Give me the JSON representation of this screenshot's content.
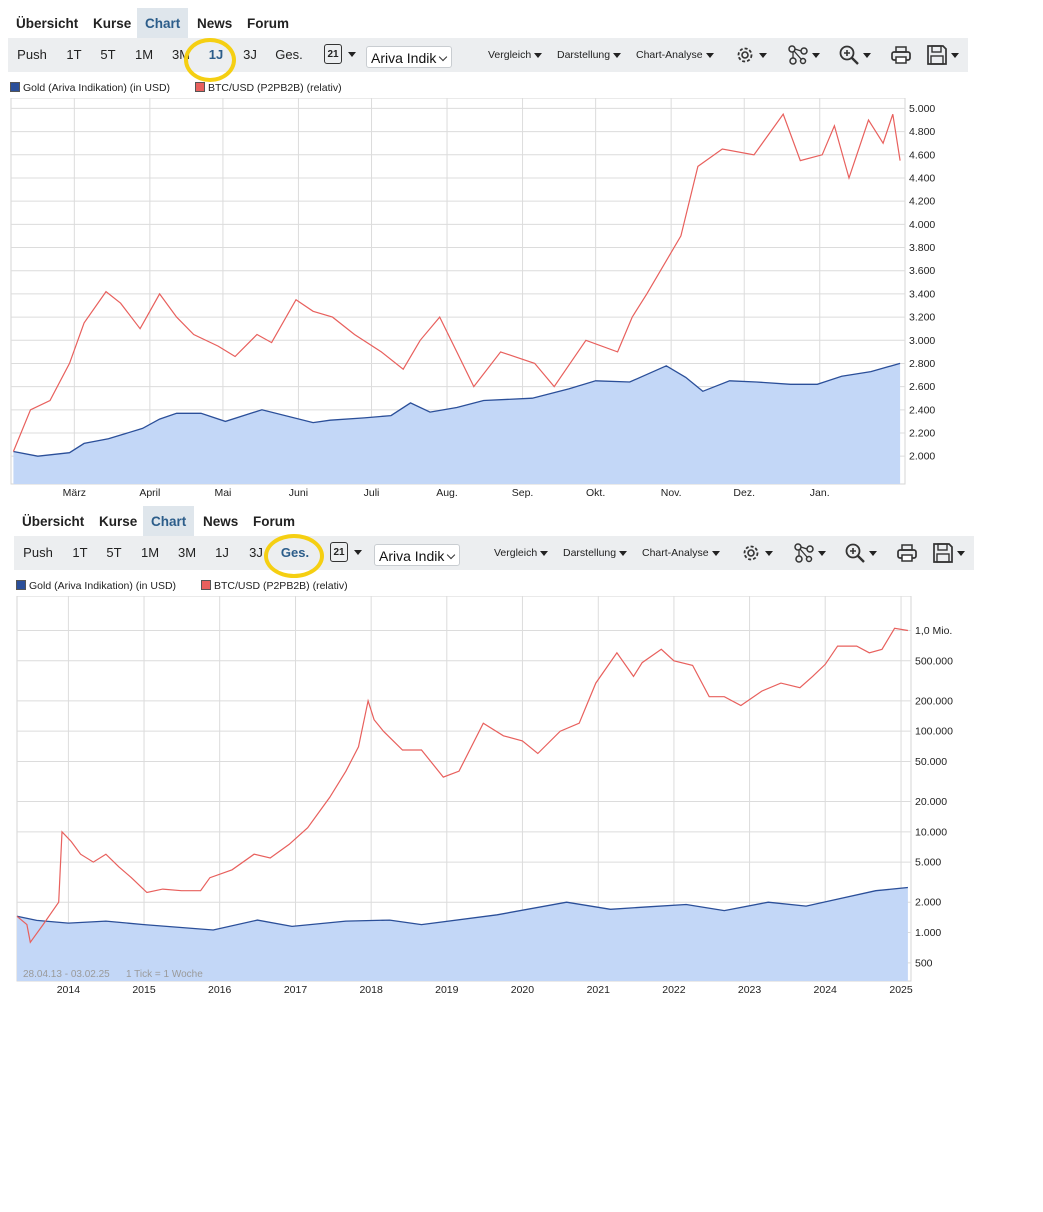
{
  "nav_tabs": [
    {
      "label": "Übersicht"
    },
    {
      "label": "Kurse"
    },
    {
      "label": "Chart",
      "active": true
    },
    {
      "label": "News"
    },
    {
      "label": "Forum"
    }
  ],
  "toolbar": {
    "ranges": [
      "Push",
      "1T",
      "5T",
      "1M",
      "3M",
      "1J",
      "3J",
      "Ges."
    ],
    "calendar_label": "21",
    "select_value": "Ariva Indik",
    "menus": [
      "Vergleich",
      "Darstellung",
      "Chart-Analyse"
    ],
    "icons": [
      "gear-icon",
      "network-icon",
      "zoom-in-icon",
      "print-icon",
      "save-icon"
    ]
  },
  "colors": {
    "gold_line": "#2b4f99",
    "gold_fill": "#c3d7f7",
    "btc_line": "#e8605d",
    "grid": "#dcdcdc",
    "highlight": "#f5cf12",
    "toolbar_bg": "#eceef0",
    "active_tab_bg": "#dfe6ec"
  },
  "legend": [
    "Gold (Ariva Indikation) (in USD)",
    "BTC/USD (P2PB2B) (relativ)"
  ],
  "chart_data": [
    {
      "type": "line",
      "selected_range": "1J",
      "y_scale": "linear",
      "xlabels": [
        "März",
        "April",
        "Mai",
        "Juni",
        "Juli",
        "Aug.",
        "Sep.",
        "Okt.",
        "Nov.",
        "Dez.",
        "Jan."
      ],
      "ylabels": [
        "2.000",
        "2.200",
        "2.400",
        "2.600",
        "2.800",
        "3.000",
        "3.200",
        "3.400",
        "3.600",
        "3.800",
        "4.000",
        "4.200",
        "4.400",
        "4.600",
        "4.800",
        "5.000"
      ],
      "ylabel_values": [
        2000,
        2200,
        2400,
        2600,
        2800,
        3000,
        3200,
        3400,
        3600,
        3800,
        4000,
        4200,
        4400,
        4600,
        4800,
        5000
      ],
      "ylim": [
        1760,
        5090
      ],
      "grid": true,
      "series": [
        {
          "name": "Gold (Ariva Indikation) (in USD)",
          "x": [
            "2024-02-05",
            "2024-02-15",
            "2024-02-28",
            "2024-03-05",
            "2024-03-15",
            "2024-03-29",
            "2024-04-05",
            "2024-04-12",
            "2024-04-22",
            "2024-05-02",
            "2024-05-17",
            "2024-06-07",
            "2024-06-14",
            "2024-06-28",
            "2024-07-09",
            "2024-07-17",
            "2024-07-25",
            "2024-08-05",
            "2024-08-16",
            "2024-09-05",
            "2024-09-20",
            "2024-10-01",
            "2024-10-15",
            "2024-10-30",
            "2024-11-07",
            "2024-11-14",
            "2024-11-25",
            "2024-12-06",
            "2024-12-20",
            "2024-12-31",
            "2025-01-10",
            "2025-01-22",
            "2025-02-03"
          ],
          "values": [
            2040,
            2000,
            2030,
            2110,
            2150,
            2240,
            2320,
            2370,
            2370,
            2300,
            2400,
            2290,
            2310,
            2330,
            2350,
            2460,
            2380,
            2420,
            2480,
            2500,
            2580,
            2650,
            2640,
            2780,
            2680,
            2560,
            2650,
            2640,
            2620,
            2620,
            2690,
            2730,
            2800
          ]
        },
        {
          "name": "BTC/USD (P2PB2B) (relativ)",
          "x": [
            "2024-02-05",
            "2024-02-12",
            "2024-02-20",
            "2024-02-28",
            "2024-03-05",
            "2024-03-14",
            "2024-03-20",
            "2024-03-28",
            "2024-04-05",
            "2024-04-12",
            "2024-04-19",
            "2024-04-29",
            "2024-05-06",
            "2024-05-15",
            "2024-05-21",
            "2024-05-31",
            "2024-06-07",
            "2024-06-15",
            "2024-06-24",
            "2024-07-05",
            "2024-07-14",
            "2024-07-21",
            "2024-07-29",
            "2024-08-05",
            "2024-08-12",
            "2024-08-23",
            "2024-09-06",
            "2024-09-14",
            "2024-09-27",
            "2024-10-10",
            "2024-10-16",
            "2024-10-22",
            "2024-11-05",
            "2024-11-12",
            "2024-11-22",
            "2024-12-05",
            "2024-12-17",
            "2024-12-24",
            "2025-01-02",
            "2025-01-07",
            "2025-01-13",
            "2025-01-21",
            "2025-01-27",
            "2025-01-31",
            "2025-02-03"
          ],
          "values": [
            2040,
            2400,
            2480,
            2800,
            3150,
            3420,
            3320,
            3100,
            3400,
            3200,
            3050,
            2950,
            2860,
            3050,
            2980,
            3350,
            3250,
            3200,
            3050,
            2900,
            2750,
            3000,
            3200,
            2900,
            2600,
            2900,
            2800,
            2600,
            3000,
            2900,
            3200,
            3400,
            3900,
            4500,
            4650,
            4600,
            4950,
            4550,
            4600,
            4850,
            4400,
            4900,
            4700,
            4950,
            4550
          ]
        }
      ]
    },
    {
      "type": "line",
      "selected_range": "Ges.",
      "y_scale": "log",
      "date_range_label": "28.04.13 - 03.02.25",
      "tick_label": "1 Tick = 1 Woche",
      "xlabels": [
        "2014",
        "2015",
        "2016",
        "2017",
        "2018",
        "2019",
        "2020",
        "2021",
        "2022",
        "2023",
        "2024",
        "2025"
      ],
      "ylabels": [
        "500",
        "1.000",
        "2.000",
        "5.000",
        "10.000",
        "20.000",
        "50.000",
        "100.000",
        "200.000",
        "500.000",
        "1,0 Mio."
      ],
      "ylabel_values": [
        500,
        1000,
        2000,
        5000,
        10000,
        20000,
        50000,
        100000,
        200000,
        500000,
        1000000
      ],
      "ylim": [
        330,
        2200000
      ],
      "grid": true,
      "series": [
        {
          "name": "Gold (Ariva Indikation) (in USD)",
          "x": [
            "2013-04-28",
            "2013-08-01",
            "2014-01-01",
            "2014-07-01",
            "2015-01-01",
            "2015-12-01",
            "2016-07-01",
            "2016-12-15",
            "2017-09-01",
            "2018-04-01",
            "2018-09-01",
            "2019-09-01",
            "2020-08-01",
            "2021-03-01",
            "2021-09-01",
            "2022-03-01",
            "2022-09-01",
            "2023-04-01",
            "2023-10-01",
            "2024-03-01",
            "2024-09-01",
            "2025-02-03"
          ],
          "values": [
            1450,
            1320,
            1240,
            1300,
            1200,
            1060,
            1330,
            1150,
            1300,
            1330,
            1200,
            1500,
            2000,
            1700,
            1800,
            1900,
            1650,
            2000,
            1830,
            2150,
            2600,
            2800
          ]
        },
        {
          "name": "BTC/USD (P2PB2B) (relativ)",
          "x": [
            "2013-04-28",
            "2013-06-15",
            "2013-07-01",
            "2013-09-01",
            "2013-11-15",
            "2013-12-01",
            "2014-01-15",
            "2014-03-01",
            "2014-05-01",
            "2014-07-01",
            "2014-09-01",
            "2014-11-01",
            "2015-01-15",
            "2015-04-01",
            "2015-07-01",
            "2015-10-01",
            "2015-11-15",
            "2016-03-01",
            "2016-06-15",
            "2016-09-01",
            "2016-12-01",
            "2017-03-01",
            "2017-06-15",
            "2017-09-01",
            "2017-11-01",
            "2017-12-17",
            "2018-01-15",
            "2018-03-01",
            "2018-06-01",
            "2018-09-01",
            "2018-12-15",
            "2019-03-01",
            "2019-06-26",
            "2019-10-01",
            "2020-01-01",
            "2020-03-15",
            "2020-07-01",
            "2020-10-01",
            "2020-12-20",
            "2021-04-01",
            "2021-06-20",
            "2021-08-01",
            "2021-11-01",
            "2022-01-01",
            "2022-04-01",
            "2022-06-20",
            "2022-09-01",
            "2022-11-20",
            "2023-03-01",
            "2023-06-01",
            "2023-09-01",
            "2023-11-01",
            "2024-01-01",
            "2024-03-01",
            "2024-06-01",
            "2024-08-01",
            "2024-10-01",
            "2024-12-01",
            "2025-02-03"
          ],
          "values": [
            1450,
            1200,
            800,
            1200,
            2000,
            10000,
            8000,
            6000,
            5000,
            6000,
            4500,
            3500,
            2500,
            2700,
            2600,
            2600,
            3500,
            4200,
            6000,
            5500,
            7500,
            11000,
            22000,
            40000,
            70000,
            200000,
            130000,
            100000,
            65000,
            65000,
            35000,
            40000,
            120000,
            90000,
            80000,
            60000,
            100000,
            120000,
            300000,
            600000,
            350000,
            480000,
            650000,
            500000,
            450000,
            220000,
            220000,
            180000,
            250000,
            300000,
            270000,
            350000,
            460000,
            700000,
            700000,
            600000,
            650000,
            1050000,
            1000000
          ]
        }
      ]
    }
  ]
}
